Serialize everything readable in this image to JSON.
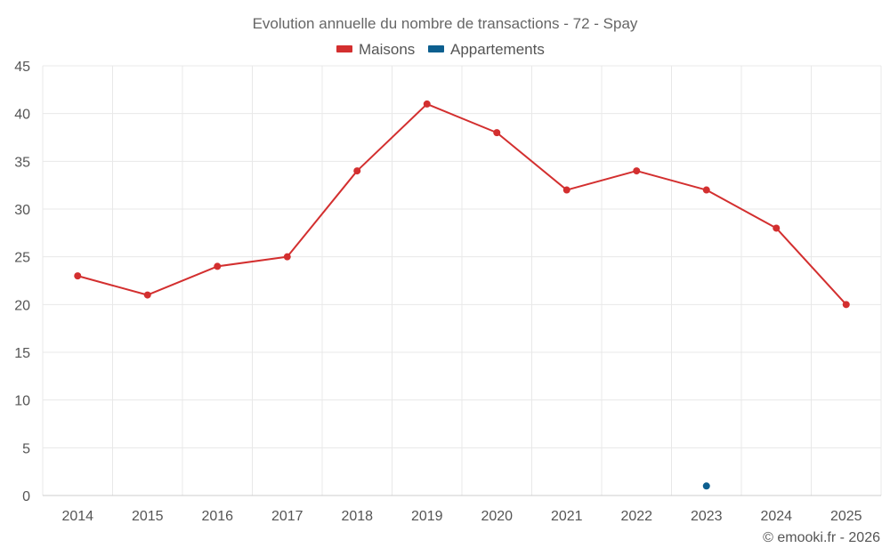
{
  "chart_data": {
    "type": "line",
    "title": "Evolution annuelle du nombre de transactions - 72 - Spay",
    "categories": [
      "2014",
      "2015",
      "2016",
      "2017",
      "2018",
      "2019",
      "2020",
      "2021",
      "2022",
      "2023",
      "2024",
      "2025"
    ],
    "series": [
      {
        "name": "Maisons",
        "color": "#d32f2f",
        "values": [
          23,
          21,
          24,
          25,
          34,
          41,
          38,
          32,
          34,
          32,
          28,
          20
        ]
      },
      {
        "name": "Appartements",
        "color": "#0d5f8f",
        "values": [
          null,
          null,
          null,
          null,
          null,
          null,
          null,
          null,
          null,
          1,
          null,
          null
        ]
      }
    ],
    "ylim": [
      0,
      45
    ],
    "yticks": [
      0,
      5,
      10,
      15,
      20,
      25,
      30,
      35,
      40,
      45
    ],
    "xlabel": "",
    "ylabel": "",
    "grid": true,
    "legend_position": "top-center"
  },
  "credit": "© emooki.fr - 2026"
}
